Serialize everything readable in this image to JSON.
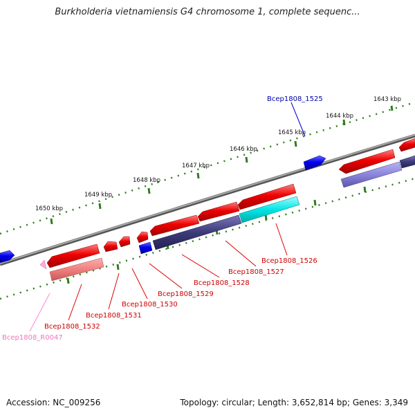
{
  "title": "Burkholderia vietnamiensis G4 chromosome 1, complete sequenc...",
  "footer": {
    "accession": "Accession: NC_009256",
    "summary": "Topology: circular; Length: 3,652,814 bp; Genes: 3,349"
  },
  "ruler": {
    "unit": "kbp",
    "ticks": [
      "1643 kbp",
      "1644 kbp",
      "1645 kbp",
      "1646 kbp",
      "1647 kbp",
      "1648 kbp",
      "1649 kbp",
      "1650 kbp"
    ]
  },
  "genes": [
    {
      "id": "Bcep1808_1525",
      "strand": "+",
      "color": "#0000ee"
    },
    {
      "id": "Bcep1808_1526",
      "strand": "-",
      "color": "#ff0000"
    },
    {
      "id": "Bcep1808_1527",
      "strand": "-",
      "color": "#ff0000"
    },
    {
      "id": "Bcep1808_1528",
      "strand": "-",
      "color": "#ff0000"
    },
    {
      "id": "Bcep1808_1529",
      "strand": "-",
      "color": "#ff0000"
    },
    {
      "id": "Bcep1808_1530",
      "strand": "-",
      "color": "#ff0000"
    },
    {
      "id": "Bcep1808_1531",
      "strand": "-",
      "color": "#ff0000"
    },
    {
      "id": "Bcep1808_1532",
      "strand": "-",
      "color": "#ff0000"
    },
    {
      "id": "Bcep1808_R0047",
      "strand": "-",
      "color": "#ff88cc"
    }
  ],
  "colors": {
    "backbone": "#888888",
    "ruler": "#2e7d1e",
    "gene_red": "#ee0000",
    "gene_blue": "#0000ee",
    "cds_navy": "#3d3a7a",
    "cds_cyan": "#00e6e6",
    "cds_salmon": "#f08080",
    "rna_pink": "#ff88cc"
  }
}
